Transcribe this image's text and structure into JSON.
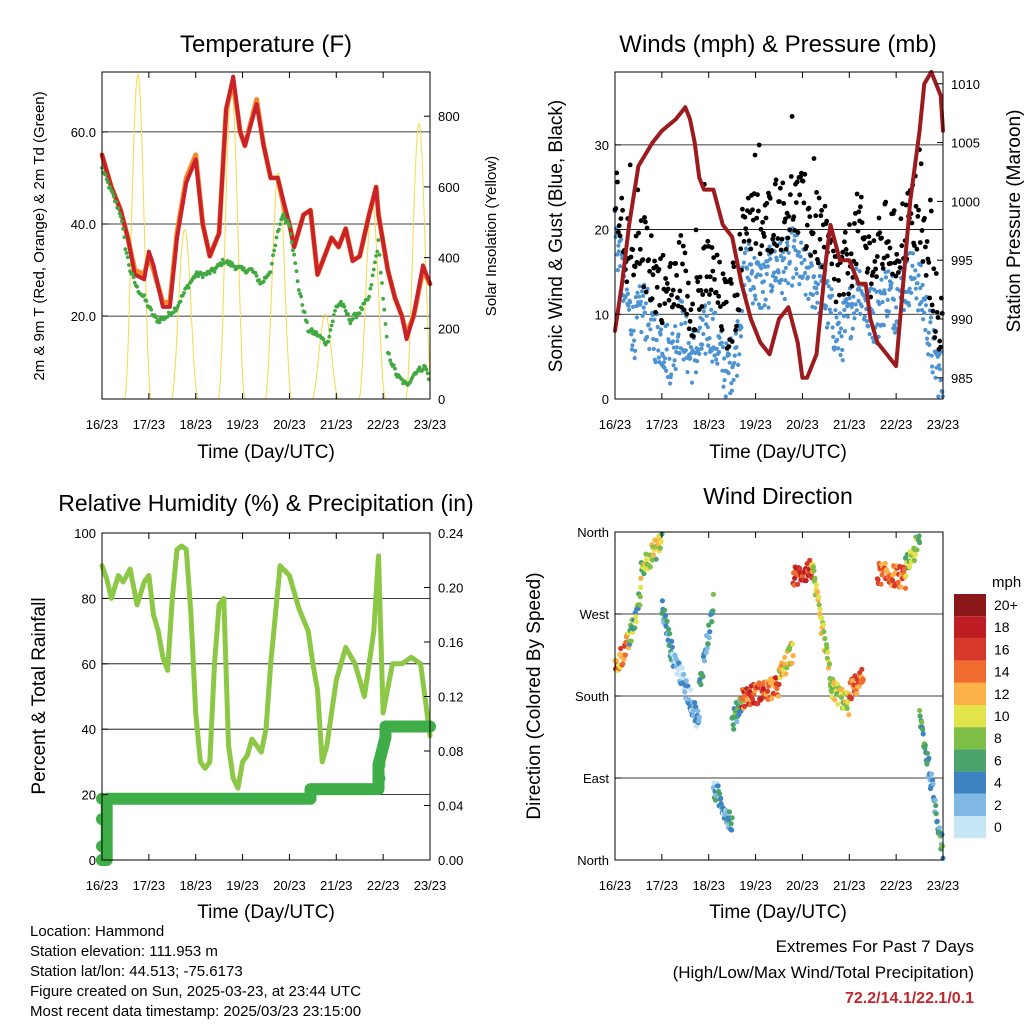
{
  "station": {
    "location": "Location: Hammond",
    "elevation": "Station elevation: 111.953 m",
    "latlon": "Station lat/lon: 44.513; -75.6173",
    "created": "Figure created on Sun, 2025-03-23, at 23:44 UTC",
    "recent": "Most recent data timestamp: 2025/03/23 23:15:00"
  },
  "extremes": {
    "title": "Extremes For Past 7 Days",
    "subtitle": "(High/Low/Max Wind/Total Precipitation)",
    "values": "72.2/14.1/22.1/0.1",
    "color": "#c0262b"
  },
  "chart_data": [
    {
      "id": "temperature",
      "type": "line",
      "title": "Temperature (F)",
      "xlabel": "Time (Day/UTC)",
      "ylabel": "2m & 9m T (Red, Orange) & 2m Td (Green)",
      "ylabel_right": "Solar Insolation (Yellow)",
      "x_ticks": [
        "16/23",
        "17/23",
        "18/23",
        "19/23",
        "20/23",
        "21/23",
        "22/23",
        "23/23"
      ],
      "xlim": [
        0,
        7
      ],
      "ylim": [
        2,
        73
      ],
      "y_ticks": [
        20.0,
        40.0,
        60.0
      ],
      "y_tick_labels": [
        "20.0",
        "40.0",
        "60.0"
      ],
      "ylim_right": [
        0,
        925
      ],
      "y_right_ticks": [
        0,
        200,
        400,
        600,
        800
      ],
      "grid": "horizontal",
      "series": [
        {
          "color": "#f68a2a",
          "x": [
            0,
            0.2,
            0.4,
            0.55,
            0.7,
            0.9,
            1.0,
            1.1,
            1.3,
            1.45,
            1.6,
            1.8,
            2.0,
            2.15,
            2.3,
            2.5,
            2.65,
            2.8,
            2.95,
            3.05,
            3.3,
            3.45,
            3.6,
            3.75,
            3.9,
            4.0,
            4.1,
            4.3,
            4.45,
            4.6,
            4.75,
            4.9,
            5.05,
            5.2,
            5.35,
            5.5,
            5.7,
            5.85,
            5.9,
            6.1,
            6.25,
            6.4,
            6.5,
            6.65,
            6.85,
            7.0
          ],
          "y": [
            55,
            48,
            43,
            37,
            30,
            29,
            33,
            30,
            23,
            23,
            38,
            50,
            55,
            40,
            33,
            38,
            65,
            71,
            60,
            57,
            67,
            57,
            50,
            50,
            43,
            40,
            35,
            42,
            43,
            29,
            33,
            37,
            35,
            39,
            32,
            33,
            42,
            48,
            42,
            30,
            24,
            20,
            16,
            20,
            30,
            27
          ]
        },
        {
          "color": "#c9222a",
          "x": [
            0,
            0.2,
            0.4,
            0.55,
            0.7,
            0.9,
            1.0,
            1.1,
            1.3,
            1.45,
            1.6,
            1.8,
            2.0,
            2.15,
            2.3,
            2.5,
            2.65,
            2.8,
            2.95,
            3.05,
            3.3,
            3.45,
            3.6,
            3.75,
            3.9,
            4.0,
            4.1,
            4.3,
            4.45,
            4.6,
            4.75,
            4.9,
            5.05,
            5.2,
            5.35,
            5.5,
            5.7,
            5.85,
            5.9,
            6.1,
            6.25,
            6.4,
            6.5,
            6.65,
            6.85,
            7.0
          ],
          "y": [
            55,
            48,
            43,
            37,
            29,
            28,
            34,
            31,
            22,
            22,
            37,
            49,
            54,
            40,
            33,
            38,
            65,
            72,
            60,
            57,
            66,
            57,
            50,
            50,
            44,
            40,
            35,
            42,
            43,
            29,
            33,
            37,
            35,
            39,
            32,
            33,
            42,
            48,
            42,
            30,
            24,
            20,
            15,
            20,
            31,
            27
          ]
        },
        {
          "color": "#41a940",
          "x": [
            0,
            0.2,
            0.4,
            0.5,
            0.6,
            0.75,
            0.9,
            1.0,
            1.1,
            1.2,
            1.4,
            1.6,
            1.8,
            2.0,
            2.2,
            2.4,
            2.6,
            2.8,
            3.0,
            3.2,
            3.4,
            3.6,
            3.75,
            3.85,
            4.0,
            4.2,
            4.4,
            4.6,
            4.8,
            5.0,
            5.1,
            5.3,
            5.5,
            5.7,
            5.9,
            6.1,
            6.3,
            6.5,
            6.7,
            6.9,
            7.0
          ],
          "y": [
            52,
            47,
            42,
            35,
            30,
            26,
            24,
            22,
            20,
            19,
            20,
            22,
            26,
            29,
            29,
            30,
            32,
            31,
            30,
            30,
            27,
            30,
            38,
            42,
            40,
            26,
            17,
            16,
            14,
            22,
            23,
            19,
            21,
            24,
            36,
            12,
            7,
            5,
            8,
            9,
            6
          ]
        }
      ],
      "solar": {
        "color": "#f5d94a",
        "days": [
          {
            "start": 0.48,
            "end": 1.05,
            "peak_x": 0.75,
            "peak": 920
          },
          {
            "start": 1.48,
            "end": 2.05,
            "peak_x": 1.75,
            "peak": 480
          },
          {
            "start": 2.48,
            "end": 3.05,
            "peak_x": 2.75,
            "peak": 880
          },
          {
            "start": 3.48,
            "end": 4.05,
            "peak_x": 3.75,
            "peak": 640
          },
          {
            "start": 4.48,
            "end": 5.05,
            "peak_x": 4.75,
            "peak": 240
          },
          {
            "start": 5.48,
            "end": 6.05,
            "peak_x": 5.75,
            "peak": 560
          },
          {
            "start": 6.48,
            "end": 7.05,
            "peak_x": 6.75,
            "peak": 780
          }
        ]
      }
    },
    {
      "id": "winds",
      "type": "scatter",
      "title": "Winds (mph) & Pressure (mb)",
      "xlabel": "Time (Day/UTC)",
      "ylabel": "Sonic Wind & Gust (Blue, Black)",
      "ylabel_right": "Station Pressure (Maroon)",
      "x_ticks": [
        "16/23",
        "17/23",
        "18/23",
        "19/23",
        "20/23",
        "21/23",
        "22/23",
        "23/23"
      ],
      "xlim": [
        0,
        7
      ],
      "ylim": [
        0,
        38.6
      ],
      "y_ticks": [
        0,
        10,
        20,
        30
      ],
      "ylim_right": [
        983.2,
        1011.0
      ],
      "y_right_ticks": [
        985,
        990,
        995,
        1000,
        1005,
        1010
      ],
      "grid": "horizontal",
      "wind_profile": {
        "x": [
          0,
          0.2,
          0.4,
          0.6,
          0.8,
          1.0,
          1.2,
          1.4,
          1.6,
          1.8,
          2.0,
          2.2,
          2.4,
          2.6,
          2.8,
          3.0,
          3.2,
          3.4,
          3.6,
          3.8,
          4.0,
          4.2,
          4.4,
          4.6,
          4.8,
          5.0,
          5.2,
          5.4,
          5.6,
          5.8,
          6.0,
          6.2,
          6.4,
          6.6,
          6.8,
          7.0
        ],
        "y": [
          20,
          13,
          8,
          11,
          8,
          7,
          5,
          9,
          5,
          6,
          9,
          6,
          3,
          6,
          16,
          14,
          13,
          16,
          15,
          17,
          15,
          14,
          13,
          10,
          7,
          10,
          14,
          10,
          10,
          13,
          11,
          14,
          15,
          11,
          5,
          2
        ]
      },
      "series": [
        {
          "name": "",
          "color": "#4d93d2"
        },
        {
          "name": "",
          "color": "#000000"
        },
        {
          "color": "#9b1b1e",
          "x": [
            0,
            0.15,
            0.3,
            0.5,
            0.8,
            1.0,
            1.3,
            1.5,
            1.6,
            1.7,
            1.8,
            1.9,
            2.1,
            2.3,
            2.5,
            2.7,
            2.9,
            3.1,
            3.3,
            3.5,
            3.7,
            3.9,
            4.0,
            4.1,
            4.3,
            4.5,
            4.6,
            4.8,
            5.0,
            5.2,
            5.35,
            5.45,
            5.6,
            5.8,
            6.0,
            6.3,
            6.5,
            6.6,
            6.75,
            6.85,
            6.95,
            7.0
          ],
          "y": [
            989,
            993,
            998,
            1003,
            1005,
            1006,
            1007,
            1008,
            1007,
            1005,
            1002,
            1001,
            1001,
            998,
            997,
            993,
            990,
            988,
            987,
            990,
            991,
            988,
            985,
            985,
            987,
            995,
            998,
            995,
            995,
            993,
            993,
            990,
            988,
            987,
            986,
            1000,
            1006,
            1010,
            1011,
            1010,
            1009,
            1006
          ]
        }
      ]
    },
    {
      "id": "humidity",
      "type": "line",
      "title": "Relative Humidity (%) & Precipitation (in)",
      "xlabel": "Time (Day/UTC)",
      "ylabel": "Percent & Total Rainfall",
      "x_ticks": [
        "16/23",
        "17/23",
        "18/23",
        "19/23",
        "20/23",
        "21/23",
        "22/23",
        "23/23"
      ],
      "xlim": [
        0,
        7
      ],
      "ylim": [
        0,
        100
      ],
      "y_ticks": [
        0,
        20,
        40,
        60,
        80,
        100
      ],
      "ylim_right": [
        0,
        0.24
      ],
      "y_right_ticks": [
        0.0,
        0.04,
        0.08,
        0.12,
        0.16,
        0.2,
        0.24
      ],
      "y_right_tick_labels": [
        "0.00",
        "0.04",
        "0.08",
        "0.12",
        "0.16",
        "0.20",
        "0.24"
      ],
      "grid": "horizontal",
      "series": [
        {
          "color": "#8cc745",
          "x": [
            0,
            0.1,
            0.2,
            0.35,
            0.45,
            0.6,
            0.75,
            0.9,
            1.0,
            1.1,
            1.2,
            1.3,
            1.4,
            1.5,
            1.6,
            1.7,
            1.8,
            1.9,
            2.0,
            2.1,
            2.2,
            2.3,
            2.4,
            2.5,
            2.6,
            2.7,
            2.8,
            2.9,
            3.0,
            3.1,
            3.2,
            3.4,
            3.5,
            3.6,
            3.8,
            4.0,
            4.2,
            4.4,
            4.5,
            4.6,
            4.7,
            4.8,
            5.0,
            5.2,
            5.4,
            5.6,
            5.8,
            5.9,
            6.0,
            6.2,
            6.4,
            6.6,
            6.8,
            7.0
          ],
          "y": [
            90,
            86,
            80,
            87,
            85,
            89,
            78,
            85,
            87,
            75,
            70,
            62,
            58,
            80,
            95,
            96,
            95,
            75,
            45,
            30,
            28,
            30,
            60,
            78,
            80,
            35,
            25,
            22,
            30,
            32,
            37,
            33,
            40,
            60,
            90,
            87,
            77,
            70,
            60,
            52,
            30,
            35,
            55,
            65,
            60,
            50,
            70,
            93,
            45,
            60,
            60,
            62,
            60,
            38
          ]
        },
        {
          "color": "#3fae49",
          "x": [
            0,
            0.1,
            0.1,
            4.45,
            4.45,
            5.9,
            5.9,
            6.05,
            6.05,
            7.0
          ],
          "y": [
            0,
            0,
            0.045,
            0.045,
            0.052,
            0.052,
            0.07,
            0.09,
            0.098,
            0.098
          ]
        }
      ]
    },
    {
      "id": "direction",
      "type": "scatter",
      "title": "Wind Direction",
      "xlabel": "Time (Day/UTC)",
      "ylabel": "Direction (Colored By Speed)",
      "x_ticks": [
        "16/23",
        "17/23",
        "18/23",
        "19/23",
        "20/23",
        "21/23",
        "22/23",
        "23/23"
      ],
      "xlim": [
        0,
        7
      ],
      "ylim": [
        0,
        360
      ],
      "y_ticks": [
        0,
        90,
        180,
        270,
        360
      ],
      "y_tick_labels": [
        "North",
        "East",
        "South",
        "West",
        "North"
      ],
      "grid": "horizontal",
      "legend": "right",
      "legend_title": "mph",
      "colorbar": {
        "labels": [
          "0",
          "2",
          "4",
          "6",
          "8",
          "10",
          "12",
          "14",
          "16",
          "18",
          "20+"
        ],
        "colors": [
          "#c6e6f6",
          "#7fb9e3",
          "#3e84c2",
          "#4aa56a",
          "#7fbe47",
          "#e3e34a",
          "#fbb148",
          "#f16b2e",
          "#d7382a",
          "#be1e23",
          "#8b171a"
        ]
      },
      "segments": [
        {
          "x0": 0.0,
          "x1": 0.3,
          "d0": 210,
          "d1": 240,
          "speed": 13
        },
        {
          "x0": 0.3,
          "x1": 0.55,
          "d0": 240,
          "d1": 290,
          "speed": 7
        },
        {
          "x0": 0.55,
          "x1": 1.0,
          "d0": 320,
          "d1": 350,
          "speed": 9
        },
        {
          "x0": 1.0,
          "x1": 1.2,
          "d0": 280,
          "d1": 230,
          "speed": 4
        },
        {
          "x0": 1.2,
          "x1": 1.8,
          "d0": 230,
          "d1": 150,
          "speed": 2
        },
        {
          "x0": 1.8,
          "x1": 2.1,
          "d0": 190,
          "d1": 280,
          "speed": 5
        },
        {
          "x0": 2.1,
          "x1": 2.5,
          "d0": 80,
          "d1": 40,
          "speed": 3
        },
        {
          "x0": 2.5,
          "x1": 2.7,
          "d0": 150,
          "d1": 175,
          "speed": 5
        },
        {
          "x0": 2.7,
          "x1": 3.5,
          "d0": 178,
          "d1": 190,
          "speed": 15
        },
        {
          "x0": 3.5,
          "x1": 3.8,
          "d0": 200,
          "d1": 230,
          "speed": 11
        },
        {
          "x0": 3.8,
          "x1": 4.2,
          "d0": 310,
          "d1": 320,
          "speed": 16
        },
        {
          "x0": 4.2,
          "x1": 4.6,
          "d0": 320,
          "d1": 200,
          "speed": 10
        },
        {
          "x0": 4.6,
          "x1": 5.0,
          "d0": 190,
          "d1": 170,
          "speed": 9
        },
        {
          "x0": 5.0,
          "x1": 5.3,
          "d0": 185,
          "d1": 200,
          "speed": 14
        },
        {
          "x0": 5.6,
          "x1": 6.2,
          "d0": 315,
          "d1": 310,
          "speed": 14
        },
        {
          "x0": 6.2,
          "x1": 6.5,
          "d0": 320,
          "d1": 350,
          "speed": 8
        },
        {
          "x0": 6.5,
          "x1": 7.0,
          "d0": 160,
          "d1": 10,
          "speed": 5
        }
      ]
    }
  ]
}
